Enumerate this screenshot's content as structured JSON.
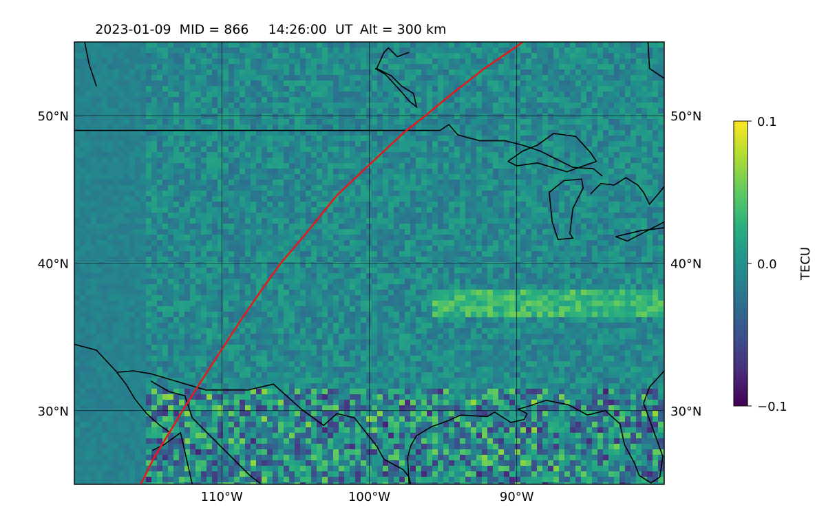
{
  "title": {
    "date": "2023-01-09",
    "mid": "MID = 866",
    "time": "14:26:00",
    "ut": "UT",
    "alt": "Alt = 300 km"
  },
  "map": {
    "lon_range": [
      -120,
      -80
    ],
    "lat_range": [
      25,
      55
    ],
    "lon_ticks": [
      {
        "value": -110,
        "label": "110°W"
      },
      {
        "value": -100,
        "label": "100°W"
      },
      {
        "value": -90,
        "label": "90°W"
      }
    ],
    "lat_ticks": [
      {
        "value": 30,
        "label": "30°N"
      },
      {
        "value": 40,
        "label": "40°N"
      },
      {
        "value": 50,
        "label": "50°N"
      }
    ],
    "grid": true,
    "colormap": "viridis",
    "track_color": "#e31a1c",
    "track": [
      [
        -115.5,
        25
      ],
      [
        -114.6,
        26.8
      ],
      [
        -113.5,
        28.6
      ],
      [
        -112.6,
        30.1
      ],
      [
        -111.4,
        32.0
      ],
      [
        -110.1,
        34.0
      ],
      [
        -108.8,
        36.0
      ],
      [
        -107.3,
        38.2
      ],
      [
        -106.0,
        40.0
      ],
      [
        -104.3,
        42.0
      ],
      [
        -102.2,
        44.6
      ],
      [
        -100.5,
        46.2
      ],
      [
        -99.0,
        47.6
      ],
      [
        -97.6,
        48.9
      ],
      [
        -96.2,
        50.0
      ],
      [
        -94.5,
        51.4
      ],
      [
        -92.2,
        53.2
      ],
      [
        -90.0,
        54.7
      ],
      [
        -89.6,
        55
      ]
    ],
    "coastlines": [
      [
        [
          -120,
          49.0
        ],
        [
          -95.2,
          49.0
        ],
        [
          -94.6,
          49.4
        ],
        [
          -94.0,
          48.7
        ],
        [
          -92.5,
          48.3
        ],
        [
          -90.8,
          48.3
        ],
        [
          -89.6,
          48.0
        ],
        [
          -88.4,
          47.6
        ],
        [
          -86.2,
          46.5
        ],
        [
          -84.8,
          46.4
        ],
        [
          -84.2,
          45.9
        ]
      ],
      [
        [
          -90.6,
          46.9
        ],
        [
          -89.6,
          47.6
        ],
        [
          -88.6,
          48.0
        ],
        [
          -87.5,
          48.8
        ],
        [
          -86.0,
          48.6
        ],
        [
          -85.0,
          47.5
        ],
        [
          -84.6,
          46.9
        ],
        [
          -86.6,
          46.2
        ],
        [
          -88.6,
          46.8
        ],
        [
          -90.0,
          46.6
        ],
        [
          -90.6,
          46.9
        ]
      ],
      [
        [
          -85.0,
          44.7
        ],
        [
          -84.3,
          45.4
        ],
        [
          -83.4,
          45.3
        ],
        [
          -82.6,
          45.8
        ],
        [
          -81.8,
          45.3
        ],
        [
          -81.4,
          44.8
        ],
        [
          -81.0,
          44.0
        ],
        [
          -80.4,
          44.7
        ],
        [
          -80.0,
          45.2
        ]
      ],
      [
        [
          -87.8,
          44.8
        ],
        [
          -86.8,
          45.6
        ],
        [
          -85.6,
          45.7
        ],
        [
          -85.5,
          45.1
        ],
        [
          -86.2,
          43.7
        ],
        [
          -86.4,
          42.0
        ],
        [
          -86.2,
          41.7
        ],
        [
          -87.2,
          41.6
        ],
        [
          -87.6,
          42.8
        ],
        [
          -87.8,
          44.8
        ]
      ],
      [
        [
          -83.3,
          41.8
        ],
        [
          -81.6,
          42.2
        ],
        [
          -80.0,
          42.4
        ],
        [
          -80.0,
          42.8
        ],
        [
          -82.5,
          41.5
        ],
        [
          -83.3,
          41.8
        ]
      ],
      [
        [
          -81.1,
          55
        ],
        [
          -81.0,
          53.2
        ],
        [
          -79.5,
          52.2
        ],
        [
          -80.0,
          51.8
        ]
      ],
      [
        [
          -119.3,
          55
        ],
        [
          -119.0,
          53.5
        ],
        [
          -118.5,
          52.0
        ]
      ],
      [
        [
          -97.3,
          54.3
        ],
        [
          -98.1,
          54.0
        ],
        [
          -98.7,
          54.6
        ],
        [
          -99.0,
          54.3
        ],
        [
          -99.5,
          53.2
        ],
        [
          -98.5,
          52.7
        ],
        [
          -97.8,
          52.0
        ],
        [
          -97.0,
          51.5
        ],
        [
          -96.8,
          50.6
        ],
        [
          -97.3,
          51.0
        ],
        [
          -97.8,
          51.6
        ],
        [
          -98.9,
          52.8
        ],
        [
          -99.6,
          53.2
        ]
      ],
      [
        [
          -120,
          34.5
        ],
        [
          -118.5,
          34.1
        ],
        [
          -117.2,
          32.7
        ],
        [
          -116.5,
          31.8
        ],
        [
          -115.9,
          30.8
        ],
        [
          -115.1,
          29.8
        ],
        [
          -114.2,
          29.0
        ],
        [
          -113.5,
          28.5
        ]
      ],
      [
        [
          -117.1,
          32.6
        ],
        [
          -116.0,
          32.7
        ],
        [
          -114.8,
          32.5
        ],
        [
          -111.1,
          31.4
        ],
        [
          -108.2,
          31.4
        ],
        [
          -106.5,
          31.8
        ],
        [
          -104.6,
          30.1
        ],
        [
          -103.1,
          29.0
        ],
        [
          -102.2,
          29.8
        ],
        [
          -101.0,
          29.5
        ],
        [
          -99.5,
          27.6
        ],
        [
          -99.0,
          26.7
        ],
        [
          -97.7,
          26.0
        ],
        [
          -97.3,
          25.5
        ],
        [
          -97.2,
          25.0
        ]
      ],
      [
        [
          -114.8,
          32.0
        ],
        [
          -113.6,
          31.3
        ],
        [
          -112.5,
          31.0
        ],
        [
          -112.0,
          29.5
        ],
        [
          -110.7,
          28.2
        ],
        [
          -109.5,
          27.0
        ],
        [
          -108.1,
          25.6
        ],
        [
          -107.3,
          25.0
        ]
      ],
      [
        [
          -114.7,
          27.3
        ],
        [
          -113.9,
          27.7
        ],
        [
          -112.8,
          28.5
        ],
        [
          -112.0,
          25.0
        ]
      ],
      [
        [
          -97.3,
          25.0
        ],
        [
          -97.4,
          26.8
        ],
        [
          -97.2,
          27.6
        ],
        [
          -96.8,
          28.3
        ],
        [
          -95.8,
          28.9
        ],
        [
          -94.7,
          29.3
        ],
        [
          -93.8,
          29.7
        ],
        [
          -92.0,
          29.6
        ],
        [
          -91.5,
          29.9
        ],
        [
          -90.4,
          29.2
        ],
        [
          -89.5,
          29.4
        ],
        [
          -89.3,
          29.8
        ],
        [
          -89.9,
          30.1
        ],
        [
          -89.2,
          30.3
        ],
        [
          -88.0,
          30.7
        ],
        [
          -86.5,
          30.4
        ],
        [
          -85.2,
          29.7
        ],
        [
          -84.0,
          30.0
        ],
        [
          -83.0,
          29.1
        ],
        [
          -82.7,
          27.7
        ],
        [
          -82.0,
          26.4
        ],
        [
          -81.7,
          25.6
        ],
        [
          -80.9,
          25.1
        ],
        [
          -80.3,
          25.5
        ],
        [
          -80.1,
          26.9
        ],
        [
          -80.6,
          28.3
        ],
        [
          -81.4,
          30.5
        ],
        [
          -81.0,
          31.6
        ],
        [
          -80.0,
          32.7
        ]
      ]
    ]
  },
  "colorbar": {
    "label": "TECU",
    "ticks": [
      {
        "value": 0.1,
        "label": "0.1"
      },
      {
        "value": 0.0,
        "label": "0.0"
      },
      {
        "value": -0.1,
        "label": "−0.1"
      }
    ],
    "vmin": -0.1,
    "vmax": 0.1
  }
}
